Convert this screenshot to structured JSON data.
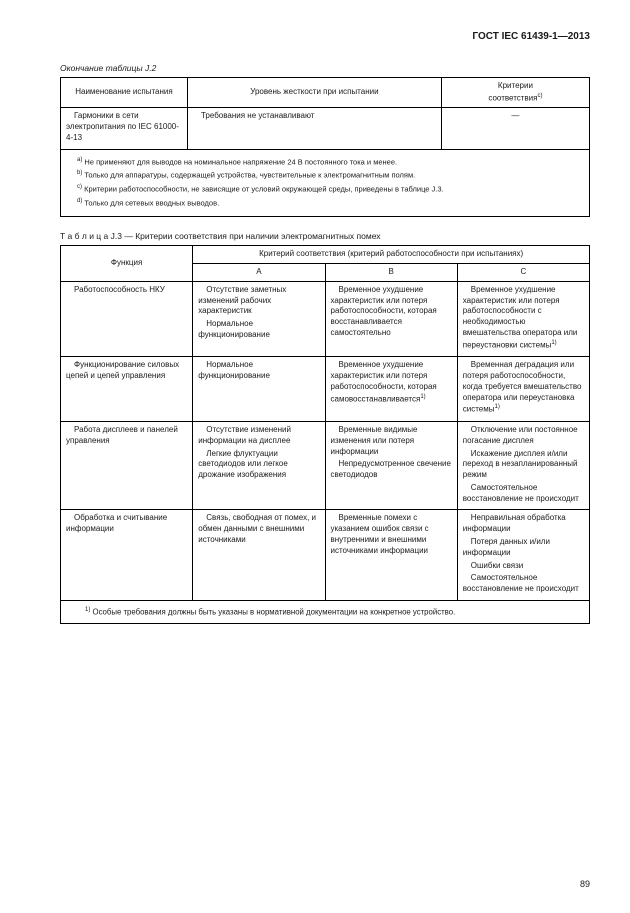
{
  "header": "ГОСТ IEC 61439-1—2013",
  "table_j2": {
    "caption_prefix": "Окончание таблицы J.2",
    "headers": {
      "h1": "Наименование испытания",
      "h2": "Уровень жесткости при испытании",
      "h3_line1": "Критерии",
      "h3_line2": "соответствия"
    },
    "row1": {
      "c1": "Гармоники в сети электропитания по IEC 61000-4-13",
      "c2": "Требования не устанавливают",
      "c3": "—"
    },
    "notes": {
      "a": " Не применяют для выводов на номинальное напряжение 24 В постоянного тока и менее.",
      "b": " Только для аппаратуры, содержащей устройства, чувствительные к электромагнитным полям.",
      "c": " Критерии работоспособности, не зависящие от условий окружающей среды, приведены в таблице J.3.",
      "d": " Только для сетевых вводных выводов."
    }
  },
  "table_j3": {
    "title_label": "Т а б л и ц а",
    "title_rest": "  J.3 — Критерии соответствия при наличии электромагнитных помех",
    "headers": {
      "func": "Функция",
      "crit": "Критерий соответствия (критерий работоспособности при испытаниях)",
      "A": "A",
      "B": "B",
      "C": "C"
    },
    "rows": [
      {
        "func": "Работоспособность НКУ",
        "A1": "Отсутствие заметных изменений рабочих характеристик",
        "A2": "Нормальное функционирование",
        "B1": "Временное ухудшение характеристик или потеря работоспособности, которая восстанавливается самостоятельно",
        "C1": "Временное ухудшение характеристик или потеря работоспособности с необходимостью вмешательства оператора или переустановки системы"
      },
      {
        "func": "Функционирование силовых цепей и цепей управления",
        "A1": "Нормальное функционирование",
        "B1": "Временное ухудшение характеристик или потеря работоспособности, которая самовосстанавливается",
        "C1": "Временная деградация или потеря работоспособности, когда требуется вмешательство оператора или переустановка системы"
      },
      {
        "func": "Работа дисплеев и панелей управления",
        "A1": "Отсутствие изменений информации на дисплее",
        "A2": "Легкие флуктуации светодиодов или легкое дрожание изображения",
        "B1": "Временные видимые изменения или потеря информации",
        "B2": "Непредусмотренное свечение светодиодов",
        "C1": "Отключение или постоянное погасание дисплея",
        "C2": "Искажение дисплея и/или переход в незапланированный режим",
        "C3": "Самостоятельное восстановление не происходит"
      },
      {
        "func": "Обработка и считывание информации",
        "A1": "Связь, свободная от помех, и обмен данными с внешними источниками",
        "B1": "Временные помехи с указанием ошибок связи с внутренними и внешними источниками информации",
        "C1": "Неправильная обработка информации",
        "C2": "Потеря данных и/или информации",
        "C3": "Ошибки связи",
        "C4": "Самостоятельное восстановление не происходит"
      }
    ],
    "footnote": " Особые требования  должны быть указаны в нормативной документации на конкретное устройство."
  },
  "page_number": "89"
}
